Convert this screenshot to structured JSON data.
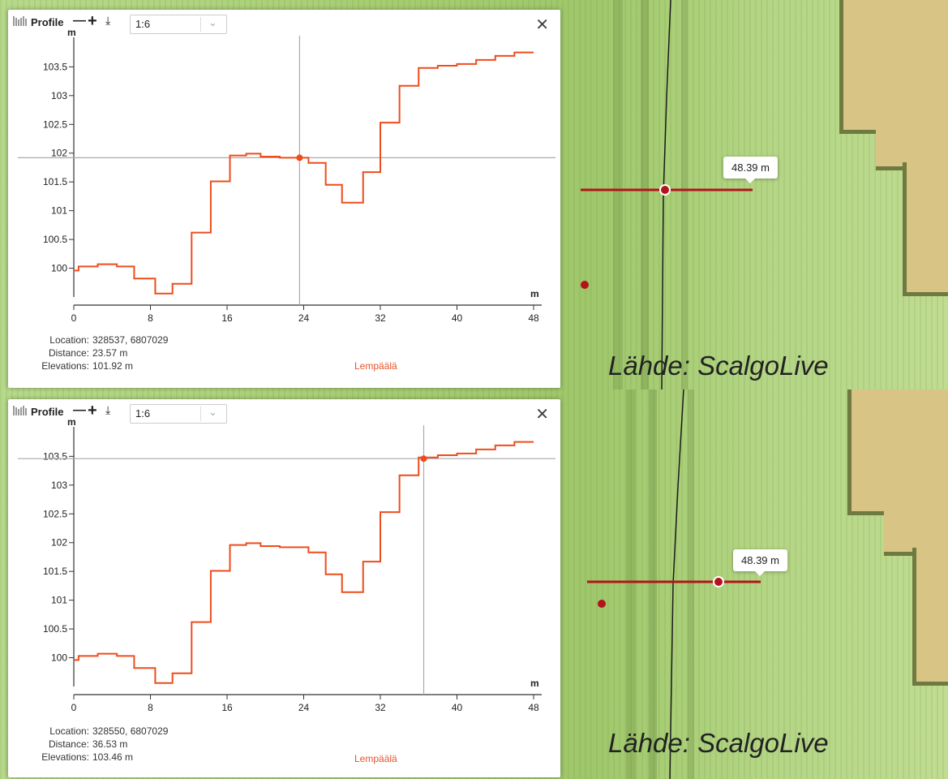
{
  "panels": [
    {
      "toolbar": {
        "title": "Profile",
        "minus_icon": "—",
        "plus_icon": "+",
        "download_icon": "⤓",
        "scale_value": "1:6",
        "chevron_icon": "⌄",
        "close_icon": "✕"
      },
      "info": {
        "location_label": "Location:",
        "location_value": "328537, 6807029",
        "distance_label": "Distance:",
        "distance_value": "23.57 m",
        "elevations_label": "Elevations:",
        "elevations_value": "101.92 m",
        "municipality": "Lempäälä"
      },
      "map": {
        "measure_label": "48.39 m",
        "source_text": "Lähde: ScalgoLive"
      },
      "chart_data": {
        "type": "line",
        "step": true,
        "xlabel": "m",
        "ylabel": "m",
        "xlim": [
          0,
          48
        ],
        "ylim": [
          99.5,
          103.9
        ],
        "x_ticks": [
          0,
          8,
          16,
          24,
          32,
          40,
          48
        ],
        "y_ticks": [
          100,
          100.5,
          101,
          101.5,
          102,
          102.5,
          103,
          103.5
        ],
        "series": [
          {
            "color": "#ee4c1c",
            "x": [
              0,
              0.5,
              2.5,
              4.5,
              6.3,
              8.5,
              10.3,
              12.3,
              14.3,
              16.3,
              18,
              19.5,
              21.5,
              23.5,
              24.5,
              26.3,
              28,
              30.2,
              32,
              34,
              36,
              38,
              40,
              42,
              44,
              46,
              48
            ],
            "y": [
              99.96,
              100.03,
              100.07,
              100.03,
              99.82,
              99.56,
              99.73,
              100.62,
              101.51,
              101.96,
              101.99,
              101.94,
              101.92,
              101.92,
              101.83,
              101.45,
              101.14,
              101.67,
              102.53,
              103.17,
              103.48,
              103.52,
              103.55,
              103.62,
              103.69,
              103.75,
              103.75
            ]
          }
        ],
        "cursor": {
          "x": 23.57,
          "y": 101.92
        }
      }
    },
    {
      "toolbar": {
        "title": "Profile",
        "minus_icon": "—",
        "plus_icon": "+",
        "download_icon": "⤓",
        "scale_value": "1:6",
        "chevron_icon": "⌄",
        "close_icon": "✕"
      },
      "info": {
        "location_label": "Location:",
        "location_value": "328550, 6807029",
        "distance_label": "Distance:",
        "distance_value": "36.53 m",
        "elevations_label": "Elevations:",
        "elevations_value": "103.46 m",
        "municipality": "Lempäälä"
      },
      "map": {
        "measure_label": "48.39 m",
        "source_text": "Lähde: ScalgoLive"
      },
      "chart_data": {
        "type": "line",
        "step": true,
        "xlabel": "m",
        "ylabel": "m",
        "xlim": [
          0,
          48
        ],
        "ylim": [
          99.5,
          103.9
        ],
        "x_ticks": [
          0,
          8,
          16,
          24,
          32,
          40,
          48
        ],
        "y_ticks": [
          100,
          100.5,
          101,
          101.5,
          102,
          102.5,
          103,
          103.5
        ],
        "series": [
          {
            "color": "#ee4c1c",
            "x": [
              0,
              0.5,
              2.5,
              4.5,
              6.3,
              8.5,
              10.3,
              12.3,
              14.3,
              16.3,
              18,
              19.5,
              21.5,
              23.5,
              24.5,
              26.3,
              28,
              30.2,
              32,
              34,
              36,
              38,
              40,
              42,
              44,
              46,
              48
            ],
            "y": [
              99.96,
              100.03,
              100.07,
              100.03,
              99.82,
              99.56,
              99.73,
              100.62,
              101.51,
              101.96,
              101.99,
              101.94,
              101.92,
              101.92,
              101.83,
              101.45,
              101.14,
              101.67,
              102.53,
              103.17,
              103.48,
              103.52,
              103.55,
              103.62,
              103.69,
              103.75,
              103.75
            ]
          }
        ],
        "cursor": {
          "x": 36.53,
          "y": 103.46
        }
      }
    }
  ]
}
